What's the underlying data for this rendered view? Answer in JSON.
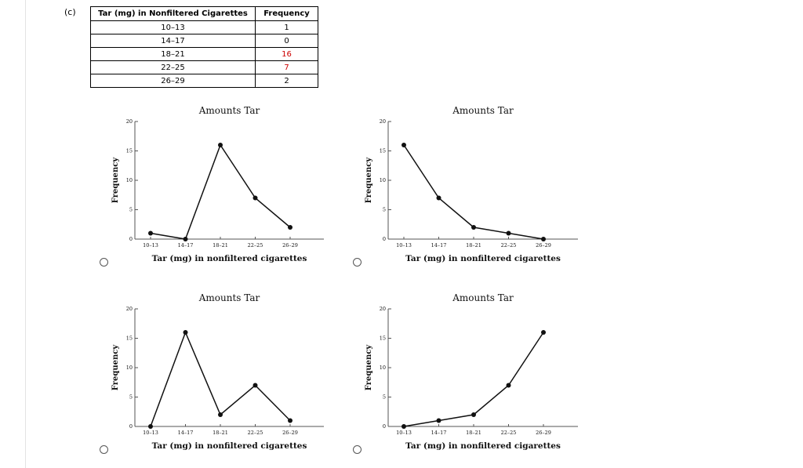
{
  "part_label": "(c)",
  "table": {
    "headers": [
      "Tar (mg) in Nonfiltered Cigarettes",
      "Frequency"
    ],
    "rows": [
      {
        "range": "10–13",
        "freq": "1",
        "highlight": false
      },
      {
        "range": "14–17",
        "freq": "0",
        "highlight": false
      },
      {
        "range": "18–21",
        "freq": "16",
        "highlight": true
      },
      {
        "range": "22–25",
        "freq": "7",
        "highlight": true
      },
      {
        "range": "26–29",
        "freq": "2",
        "highlight": false
      }
    ]
  },
  "colors": {
    "highlight": "#cc0000",
    "line": "#111111"
  },
  "chart_data": [
    {
      "type": "line",
      "option": "A",
      "title": "Amounts Tar",
      "xlabel": "Tar (mg) in nonfiltered cigarettes",
      "ylabel": "Frequency",
      "categories": [
        "10–13",
        "14–17",
        "18–21",
        "22–25",
        "26–29"
      ],
      "values": [
        1,
        0,
        16,
        7,
        2
      ],
      "ylim": [
        0,
        20
      ],
      "yticks": [
        0,
        5,
        10,
        15,
        20
      ]
    },
    {
      "type": "line",
      "option": "B",
      "title": "Amounts Tar",
      "xlabel": "Tar (mg) in nonfiltered cigarettes",
      "ylabel": "Frequency",
      "categories": [
        "10–13",
        "14–17",
        "18–21",
        "22–25",
        "26–29"
      ],
      "values": [
        16,
        7,
        2,
        1,
        0
      ],
      "ylim": [
        0,
        20
      ],
      "yticks": [
        0,
        5,
        10,
        15,
        20
      ]
    },
    {
      "type": "line",
      "option": "C",
      "title": "Amounts Tar",
      "xlabel": "Tar (mg) in nonfiltered cigarettes",
      "ylabel": "Frequency",
      "categories": [
        "10–13",
        "14–17",
        "18–21",
        "22–25",
        "26–29"
      ],
      "values": [
        0,
        16,
        2,
        7,
        1
      ],
      "ylim": [
        0,
        20
      ],
      "yticks": [
        0,
        5,
        10,
        15,
        20
      ]
    },
    {
      "type": "line",
      "option": "D",
      "title": "Amounts Tar",
      "xlabel": "Tar (mg) in nonfiltered cigarettes",
      "ylabel": "Frequency",
      "categories": [
        "10–13",
        "14–17",
        "18–21",
        "22–25",
        "26–29"
      ],
      "values": [
        0,
        1,
        2,
        7,
        16
      ],
      "ylim": [
        0,
        20
      ],
      "yticks": [
        0,
        5,
        10,
        15,
        20
      ]
    }
  ]
}
